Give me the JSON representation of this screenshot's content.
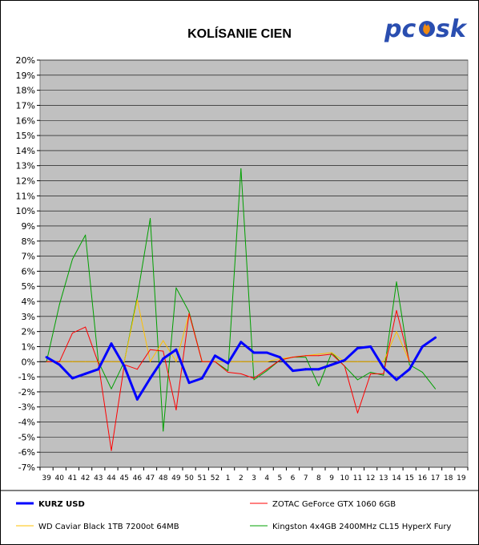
{
  "logo": {
    "text_left": "pc",
    "text_right": "sk",
    "colors": {
      "text": "#2a4eb0",
      "flame": "#f08a10"
    }
  },
  "chart_data": {
    "type": "line",
    "title": "KOLÍSANIE CIEN",
    "xlabel": "",
    "ylabel": "",
    "x": [
      "39",
      "40",
      "41",
      "42",
      "43",
      "44",
      "45",
      "46",
      "47",
      "48",
      "49",
      "50",
      "51",
      "52",
      "1",
      "2",
      "3",
      "4",
      "5",
      "6",
      "7",
      "8",
      "9",
      "10",
      "11",
      "12",
      "13",
      "14",
      "15",
      "16",
      "17",
      "18",
      "19"
    ],
    "y_ticks": [
      "20%",
      "19%",
      "18%",
      "17%",
      "16%",
      "15%",
      "14%",
      "13%",
      "12%",
      "11%",
      "10%",
      "9%",
      "8%",
      "7%",
      "6%",
      "5%",
      "4%",
      "3%",
      "2%",
      "1%",
      "0%",
      "-1%",
      "-2%",
      "-3%",
      "-4%",
      "-5%",
      "-6%",
      "-7%"
    ],
    "ylim": [
      -7,
      20
    ],
    "grid": true,
    "plot_background": "#c0c0c0",
    "legend_position": "bottom",
    "series": [
      {
        "name": "KURZ USD",
        "color": "#0000ff",
        "width": 3,
        "values": [
          0.3,
          -0.2,
          -1.1,
          -0.8,
          -0.5,
          1.2,
          -0.3,
          -2.5,
          -1.1,
          0.2,
          0.8,
          -1.4,
          -1.1,
          0.4,
          -0.1,
          1.3,
          0.6,
          0.6,
          0.3,
          -0.6,
          -0.5,
          -0.5,
          -0.2,
          0.1,
          0.9,
          1.0,
          -0.4,
          -1.2,
          -0.5,
          1.0,
          1.6,
          null,
          null
        ]
      },
      {
        "name": "ZOTAC GeForce GTX 1060 6GB",
        "color": "#ff0000",
        "width": 1,
        "values": [
          0.0,
          0.0,
          1.9,
          2.3,
          -0.1,
          -5.9,
          -0.2,
          -0.5,
          0.8,
          0.7,
          -3.2,
          3.2,
          0.0,
          0.0,
          -0.7,
          -0.8,
          -1.1,
          -0.5,
          0.1,
          0.3,
          0.4,
          0.4,
          0.5,
          -0.3,
          -3.4,
          -0.8,
          -0.8,
          3.4,
          0.0,
          null,
          null,
          null,
          null
        ]
      },
      {
        "name": "WD Caviar Black 1TB 7200ot 64MB",
        "color": "#ffc000",
        "width": 1,
        "values": [
          0.0,
          0.0,
          0.0,
          0.0,
          0.0,
          0.0,
          0.0,
          4.1,
          0.0,
          1.4,
          0.0,
          3.2,
          0.0,
          0.0,
          0.0,
          0.0,
          0.0,
          0.0,
          0.2,
          0.3,
          0.4,
          0.5,
          0.6,
          0.0,
          0.0,
          0.0,
          0.0,
          2.0,
          0.0,
          null,
          null,
          null,
          null
        ]
      },
      {
        "name": "Kingston 4x4GB 2400MHz CL15 HyperX Fury",
        "color": "#00a000",
        "width": 1,
        "values": [
          0.0,
          3.8,
          6.8,
          8.4,
          0.0,
          -1.8,
          0.0,
          4.3,
          9.5,
          -4.6,
          4.9,
          3.3,
          0.0,
          0.0,
          -0.6,
          12.8,
          -1.2,
          -0.6,
          0.1,
          0.3,
          0.3,
          -1.6,
          0.6,
          -0.3,
          -1.2,
          -0.7,
          -0.9,
          5.3,
          -0.2,
          -0.7,
          -1.8,
          null,
          null
        ]
      }
    ]
  }
}
